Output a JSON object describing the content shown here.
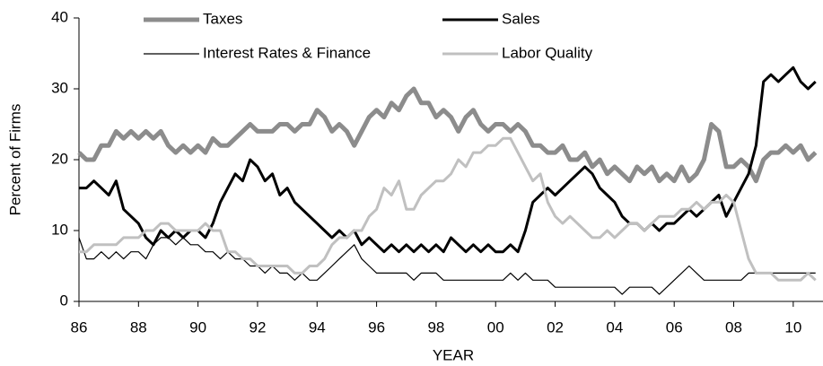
{
  "chart_data": {
    "type": "line",
    "xlabel": "YEAR",
    "ylabel": "Percent of Firms",
    "x": [
      1986,
      1986.25,
      1986.5,
      1986.75,
      1987,
      1987.25,
      1987.5,
      1987.75,
      1988,
      1988.25,
      1988.5,
      1988.75,
      1989,
      1989.25,
      1989.5,
      1989.75,
      1990,
      1990.25,
      1990.5,
      1990.75,
      1991,
      1991.25,
      1991.5,
      1991.75,
      1992,
      1992.25,
      1992.5,
      1992.75,
      1993,
      1993.25,
      1993.5,
      1993.75,
      1994,
      1994.25,
      1994.5,
      1994.75,
      1995,
      1995.25,
      1995.5,
      1995.75,
      1996,
      1996.25,
      1996.5,
      1996.75,
      1997,
      1997.25,
      1997.5,
      1997.75,
      1998,
      1998.25,
      1998.5,
      1998.75,
      1999,
      1999.25,
      1999.5,
      1999.75,
      2000,
      2000.25,
      2000.5,
      2000.75,
      2001,
      2001.25,
      2001.5,
      2001.75,
      2002,
      2002.25,
      2002.5,
      2002.75,
      2003,
      2003.25,
      2003.5,
      2003.75,
      2004,
      2004.25,
      2004.5,
      2004.75,
      2005,
      2005.25,
      2005.5,
      2005.75,
      2006,
      2006.25,
      2006.5,
      2006.75,
      2007,
      2007.25,
      2007.5,
      2007.75,
      2008,
      2008.25,
      2008.5,
      2008.75,
      2009,
      2009.25,
      2009.5,
      2009.75,
      2010,
      2010.25,
      2010.5,
      2010.75
    ],
    "series": [
      {
        "name": "Taxes",
        "color": "#8c8c8c",
        "values": [
          21,
          20,
          20,
          22,
          22,
          24,
          23,
          24,
          23,
          24,
          23,
          24,
          22,
          21,
          22,
          21,
          22,
          21,
          23,
          22,
          22,
          23,
          24,
          25,
          24,
          24,
          24,
          25,
          25,
          24,
          25,
          25,
          27,
          26,
          24,
          25,
          24,
          22,
          24,
          26,
          27,
          26,
          28,
          27,
          29,
          30,
          28,
          28,
          26,
          27,
          26,
          24,
          26,
          27,
          25,
          24,
          25,
          25,
          24,
          25,
          24,
          22,
          22,
          21,
          21,
          22,
          20,
          20,
          21,
          19,
          20,
          18,
          19,
          18,
          17,
          19,
          18,
          19,
          17,
          18,
          17,
          19,
          17,
          18,
          20,
          25,
          24,
          19,
          19,
          20,
          19,
          17,
          20,
          21,
          21,
          22,
          21,
          22,
          20,
          21
        ]
      },
      {
        "name": "Sales",
        "color": "#000000",
        "values": [
          16,
          16,
          17,
          16,
          15,
          17,
          13,
          12,
          11,
          9,
          8,
          10,
          9,
          10,
          9,
          10,
          10,
          9,
          11,
          14,
          16,
          18,
          17,
          20,
          19,
          17,
          18,
          15,
          16,
          14,
          13,
          12,
          11,
          10,
          9,
          10,
          9,
          10,
          8,
          9,
          8,
          7,
          8,
          7,
          8,
          7,
          8,
          7,
          8,
          7,
          9,
          8,
          7,
          8,
          7,
          8,
          7,
          7,
          8,
          7,
          10,
          14,
          15,
          16,
          15,
          16,
          17,
          18,
          19,
          18,
          16,
          15,
          14,
          12,
          11,
          11,
          10,
          11,
          10,
          11,
          11,
          12,
          13,
          12,
          13,
          14,
          15,
          12,
          14,
          16,
          18,
          22,
          31,
          32,
          31,
          32,
          33,
          31,
          30,
          31
        ]
      },
      {
        "name": "Interest Rates & Finance",
        "color": "#000000",
        "values": [
          9,
          6,
          6,
          7,
          6,
          7,
          6,
          7,
          7,
          6,
          8,
          9,
          9,
          8,
          9,
          8,
          8,
          7,
          7,
          6,
          7,
          6,
          6,
          5,
          5,
          4,
          5,
          4,
          4,
          3,
          4,
          3,
          3,
          4,
          5,
          6,
          7,
          8,
          6,
          5,
          4,
          4,
          4,
          4,
          4,
          3,
          4,
          4,
          4,
          3,
          3,
          3,
          3,
          3,
          3,
          3,
          3,
          3,
          4,
          3,
          4,
          3,
          3,
          3,
          2,
          2,
          2,
          2,
          2,
          2,
          2,
          2,
          2,
          1,
          2,
          2,
          2,
          2,
          1,
          2,
          3,
          4,
          5,
          4,
          3,
          3,
          3,
          3,
          3,
          3,
          4,
          4,
          4,
          4,
          4,
          4,
          4,
          4,
          4,
          4
        ]
      },
      {
        "name": "Labor Quality",
        "color": "#c0c0c0",
        "values": [
          7,
          7,
          8,
          8,
          8,
          8,
          9,
          9,
          9,
          10,
          10,
          11,
          11,
          10,
          10,
          10,
          10,
          11,
          10,
          10,
          7,
          7,
          6,
          6,
          5,
          5,
          5,
          5,
          5,
          4,
          4,
          5,
          5,
          6,
          8,
          9,
          9,
          10,
          10,
          12,
          13,
          16,
          15,
          17,
          13,
          13,
          15,
          16,
          17,
          17,
          18,
          20,
          19,
          21,
          21,
          22,
          22,
          23,
          23,
          21,
          19,
          17,
          18,
          14,
          12,
          11,
          12,
          11,
          10,
          9,
          9,
          10,
          9,
          10,
          11,
          11,
          10,
          11,
          12,
          12,
          12,
          13,
          13,
          14,
          13,
          14,
          14,
          15,
          14,
          10,
          6,
          4,
          4,
          4,
          3,
          3,
          3,
          3,
          4,
          3
        ]
      }
    ],
    "xlim": [
      1986,
      2011
    ],
    "xticks": [
      {
        "value": 1986,
        "label": "86"
      },
      {
        "value": 1988,
        "label": "88"
      },
      {
        "value": 1990,
        "label": "90"
      },
      {
        "value": 1992,
        "label": "92"
      },
      {
        "value": 1994,
        "label": "94"
      },
      {
        "value": 1996,
        "label": "96"
      },
      {
        "value": 1998,
        "label": "98"
      },
      {
        "value": 2000,
        "label": "00"
      },
      {
        "value": 2002,
        "label": "02"
      },
      {
        "value": 2004,
        "label": "04"
      },
      {
        "value": 2006,
        "label": "06"
      },
      {
        "value": 2008,
        "label": "08"
      },
      {
        "value": 2010,
        "label": "10"
      }
    ],
    "ylim": [
      0,
      40
    ],
    "yticks": [
      0,
      10,
      20,
      30,
      40
    ],
    "grid": false
  }
}
